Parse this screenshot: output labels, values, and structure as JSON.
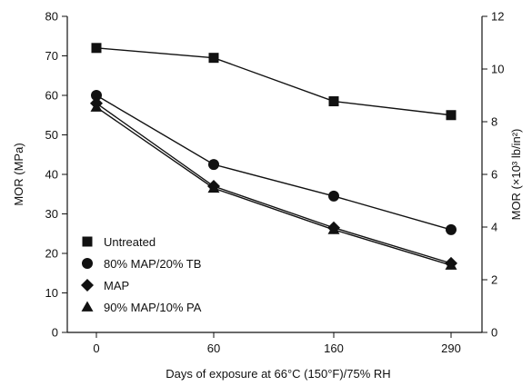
{
  "chart_data": {
    "type": "line",
    "categories": [
      "0",
      "60",
      "160",
      "290"
    ],
    "x": [
      0,
      60,
      160,
      290
    ],
    "title": "",
    "xlabel": "Days of exposure at 66°C (150°F)/75% RH",
    "ylabel_left": "MOR (MPa)",
    "ylabel_right": "MOR (×10³ lb/in²)",
    "ylim_left": [
      0,
      80
    ],
    "yticks_left": [
      "0",
      "10",
      "20",
      "30",
      "40",
      "50",
      "60",
      "70",
      "80"
    ],
    "ylim_right": [
      0,
      12
    ],
    "yticks_right": [
      "0",
      "2",
      "4",
      "6",
      "8",
      "10",
      "12"
    ],
    "grid": false,
    "legend_position": "bottom-left",
    "series": [
      {
        "name": "Untreated",
        "marker": "square",
        "values": [
          72,
          69.5,
          58.5,
          55
        ]
      },
      {
        "name": "80% MAP/20% TB",
        "marker": "circle",
        "values": [
          60,
          42.5,
          34.5,
          26
        ]
      },
      {
        "name": "MAP",
        "marker": "diamond",
        "values": [
          58,
          37,
          26.5,
          17.5
        ]
      },
      {
        "name": "90% MAP/10% PA",
        "marker": "triangle",
        "values": [
          57,
          36.5,
          26,
          17
        ]
      }
    ],
    "colors": {
      "line": "#111111",
      "marker": "#111111",
      "background": "#ffffff"
    }
  }
}
